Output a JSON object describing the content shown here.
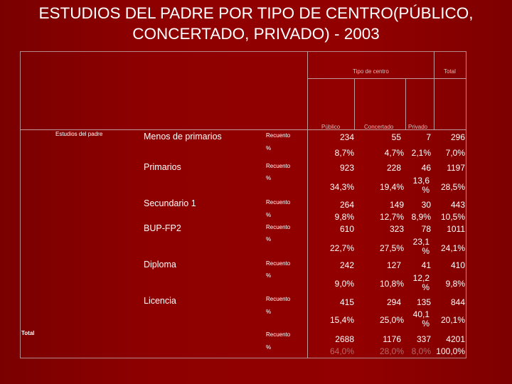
{
  "slide": {
    "title": "ESTUDIOS DEL PADRE POR TIPO DE CENTRO(PÚBLICO,\nCONCERTADO, PRIVADO)  - 2003"
  },
  "table": {
    "group_header": "Tipo de centro",
    "total_header": "Total",
    "columns": [
      "Público",
      "Concertado",
      "Privado"
    ],
    "row_dimension_label": "Estudios del padre",
    "measure_labels": {
      "count": "Recuento",
      "percent": "%"
    },
    "rows": [
      {
        "category": "Menos de primarios",
        "count": [
          "234",
          "55",
          "7",
          "296"
        ],
        "percent": [
          "8,7%",
          "4,7%",
          "2,1%",
          "7,0%"
        ]
      },
      {
        "category": "Primarios",
        "count": [
          "923",
          "228",
          "46",
          "1197"
        ],
        "percent": [
          "34,3%",
          "19,4%",
          "13,6 %",
          "28,5%"
        ]
      },
      {
        "category": "Secundario 1",
        "count": [
          "264",
          "149",
          "30",
          "443"
        ],
        "percent": [
          "9,8%",
          "12,7%",
          "8,9%",
          "10,5%"
        ]
      },
      {
        "category": "BUP-FP2",
        "count": [
          "610",
          "323",
          "78",
          "1011"
        ],
        "percent": [
          "22,7%",
          "27,5%",
          "23,1 %",
          "24,1%"
        ]
      },
      {
        "category": "Diploma",
        "count": [
          "242",
          "127",
          "41",
          "410"
        ],
        "percent": [
          "9,0%",
          "10,8%",
          "12,2 %",
          "9,8%"
        ]
      },
      {
        "category": "Licencia",
        "count": [
          "415",
          "294",
          "135",
          "844"
        ],
        "percent": [
          "15,4%",
          "25,0%",
          "40,1 %",
          "20,1%"
        ]
      }
    ],
    "total_row": {
      "label": "Total",
      "count": [
        "2688",
        "1176",
        "337",
        "4201"
      ],
      "percent": [
        "64,0%",
        "28,0%",
        "8,0%",
        "100,0%"
      ]
    }
  }
}
